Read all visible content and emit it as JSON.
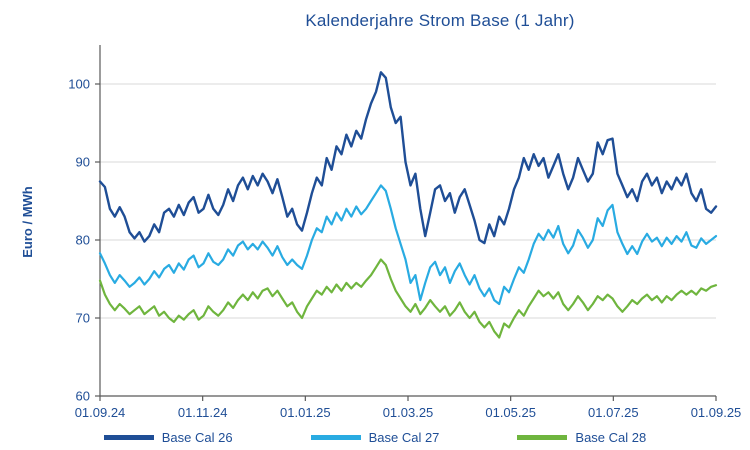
{
  "chart_data": {
    "type": "line",
    "title": "Kalenderjahre Strom Base (1 Jahr)",
    "xlabel": "",
    "ylabel": "Euro / MWh",
    "ylim": [
      60,
      105
    ],
    "yticks": [
      60,
      70,
      80,
      90,
      100
    ],
    "xtick_labels": [
      "01.09.24",
      "01.11.24",
      "01.01.25",
      "01.03.25",
      "01.05.25",
      "01.07.25",
      "01.09.25"
    ],
    "grid": "horizontal",
    "legend_position": "bottom",
    "colors": {
      "background": "#FFFFFF",
      "grid": "#D9D9D9",
      "axis": "#595959",
      "text": "#1F4E96"
    },
    "series": [
      {
        "name": "Base Cal 26",
        "color": "#1F4E96",
        "stroke_width": 2.4,
        "values": [
          87.5,
          86.8,
          84.0,
          83.0,
          84.2,
          83.0,
          81.0,
          80.2,
          81.0,
          79.8,
          80.5,
          82.0,
          81.0,
          83.5,
          84.0,
          83.0,
          84.5,
          83.2,
          84.8,
          85.5,
          83.5,
          84.0,
          85.8,
          84.0,
          83.2,
          84.5,
          86.5,
          85.0,
          87.0,
          88.0,
          86.5,
          88.2,
          87.0,
          88.5,
          87.5,
          86.0,
          87.8,
          85.5,
          83.0,
          84.0,
          82.0,
          81.2,
          83.5,
          86.0,
          88.0,
          87.0,
          90.5,
          89.0,
          92.0,
          91.0,
          93.5,
          92.0,
          94.0,
          93.0,
          95.5,
          97.5,
          99.0,
          101.5,
          100.8,
          97.0,
          95.0,
          95.8,
          90.0,
          87.0,
          88.5,
          84.0,
          80.5,
          83.5,
          86.5,
          87.0,
          85.0,
          86.0,
          83.5,
          85.5,
          86.5,
          84.5,
          82.5,
          80.0,
          79.6,
          82.0,
          80.5,
          83.0,
          82.0,
          84.0,
          86.5,
          88.0,
          90.5,
          89.0,
          91.0,
          89.5,
          90.5,
          88.0,
          89.5,
          91.0,
          88.5,
          86.5,
          88.0,
          90.5,
          89.0,
          87.5,
          88.5,
          92.5,
          91.0,
          92.8,
          93.0,
          88.5,
          87.0,
          85.5,
          86.5,
          85.0,
          87.5,
          88.5,
          87.0,
          88.0,
          86.0,
          87.5,
          86.5,
          88.0,
          87.0,
          88.5,
          86.0,
          85.0,
          86.5,
          84.0,
          83.5,
          84.3
        ]
      },
      {
        "name": "Base Cal 27",
        "color": "#29ABE2",
        "stroke_width": 2.2,
        "values": [
          78.3,
          77.0,
          75.5,
          74.5,
          75.5,
          74.8,
          74.0,
          74.5,
          75.2,
          74.3,
          75.0,
          76.0,
          75.2,
          76.3,
          76.8,
          75.8,
          77.0,
          76.2,
          77.5,
          78.0,
          76.5,
          77.0,
          78.3,
          77.2,
          76.8,
          77.5,
          78.8,
          78.0,
          79.3,
          79.8,
          78.8,
          79.5,
          78.8,
          79.8,
          79.0,
          78.0,
          79.2,
          77.8,
          76.8,
          77.5,
          76.8,
          76.3,
          78.0,
          80.0,
          81.5,
          81.0,
          83.0,
          82.0,
          83.5,
          82.5,
          84.0,
          83.0,
          84.3,
          83.3,
          84.0,
          85.0,
          86.0,
          87.0,
          86.3,
          84.0,
          81.5,
          79.5,
          77.5,
          74.5,
          75.5,
          72.3,
          74.5,
          76.5,
          77.2,
          75.5,
          76.5,
          74.5,
          76.0,
          77.0,
          75.5,
          74.3,
          75.5,
          73.8,
          72.8,
          73.8,
          72.3,
          71.8,
          74.0,
          73.3,
          75.0,
          76.5,
          75.8,
          77.5,
          79.5,
          80.8,
          80.0,
          81.3,
          80.3,
          81.8,
          79.5,
          78.3,
          79.3,
          81.3,
          80.3,
          79.0,
          80.0,
          82.8,
          81.8,
          83.8,
          84.5,
          81.0,
          79.5,
          78.2,
          79.2,
          78.2,
          79.8,
          80.8,
          79.8,
          80.3,
          79.2,
          80.3,
          79.5,
          80.5,
          79.8,
          81.0,
          79.3,
          79.0,
          80.2,
          79.5,
          80.0,
          80.5
        ]
      },
      {
        "name": "Base Cal 28",
        "color": "#6FB53E",
        "stroke_width": 2.2,
        "values": [
          74.8,
          73.0,
          71.8,
          71.0,
          71.8,
          71.2,
          70.5,
          71.0,
          71.5,
          70.5,
          71.0,
          71.5,
          70.3,
          70.8,
          70.0,
          69.5,
          70.3,
          69.8,
          70.5,
          71.0,
          69.8,
          70.3,
          71.5,
          70.8,
          70.3,
          71.0,
          72.0,
          71.3,
          72.3,
          73.0,
          72.3,
          73.3,
          72.5,
          73.5,
          73.8,
          72.8,
          73.5,
          72.5,
          71.5,
          72.0,
          70.8,
          70.0,
          71.5,
          72.5,
          73.5,
          73.0,
          74.0,
          73.3,
          74.3,
          73.5,
          74.5,
          73.8,
          74.5,
          74.0,
          74.8,
          75.5,
          76.5,
          77.5,
          76.8,
          75.0,
          73.5,
          72.5,
          71.5,
          70.8,
          71.8,
          70.5,
          71.3,
          72.3,
          71.5,
          70.8,
          71.5,
          70.3,
          71.0,
          72.0,
          70.8,
          70.0,
          70.8,
          69.5,
          68.8,
          69.5,
          68.3,
          67.5,
          69.3,
          68.8,
          70.0,
          71.0,
          70.3,
          71.5,
          72.5,
          73.5,
          72.8,
          73.3,
          72.5,
          73.3,
          71.8,
          71.0,
          71.8,
          72.8,
          72.0,
          71.0,
          71.8,
          72.8,
          72.3,
          73.0,
          72.5,
          71.5,
          70.8,
          71.5,
          72.3,
          71.8,
          72.5,
          73.0,
          72.3,
          72.8,
          72.0,
          72.8,
          72.3,
          73.0,
          73.5,
          73.0,
          73.5,
          73.0,
          73.8,
          73.5,
          74.0,
          74.2
        ]
      }
    ]
  }
}
